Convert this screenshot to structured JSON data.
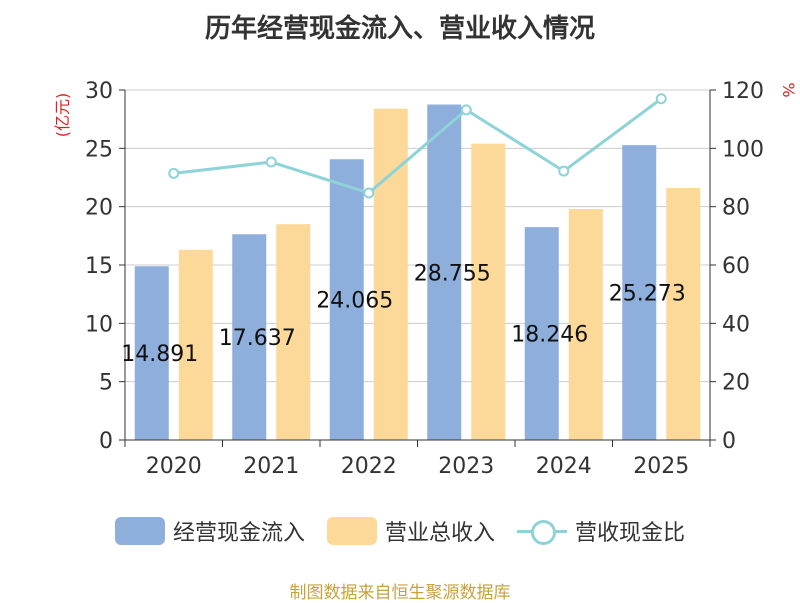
{
  "chart_data": {
    "type": "bar",
    "title": "历年经营现金流入、营业收入情况",
    "categories": [
      "2020",
      "2021",
      "2022",
      "2023",
      "2024",
      "2025"
    ],
    "series": [
      {
        "name": "经营现金流入",
        "type": "bar",
        "axis": "left",
        "color": "#8eaedb",
        "values": [
          14.891,
          17.637,
          24.065,
          28.755,
          18.246,
          25.273
        ],
        "labels": [
          "14.891",
          "17.637",
          "24.065",
          "28.755",
          "18.246",
          "25.273"
        ]
      },
      {
        "name": "营业总收入",
        "type": "bar",
        "axis": "left",
        "color": "#fcd999",
        "values": [
          16.3,
          18.5,
          28.4,
          25.4,
          19.8,
          21.6
        ]
      },
      {
        "name": "营收现金比",
        "type": "line",
        "axis": "right",
        "color": "#8dd3d7",
        "values": [
          91.4,
          95.3,
          84.7,
          113.2,
          92.2,
          117.0
        ]
      }
    ],
    "left_axis": {
      "unit": "(亿元)",
      "ylim": [
        0,
        30
      ],
      "ticks": [
        "0",
        "5",
        "10",
        "15",
        "20",
        "25",
        "30"
      ]
    },
    "right_axis": {
      "unit": "%",
      "ylim": [
        0,
        120
      ],
      "ticks": [
        "0",
        "20",
        "40",
        "60",
        "80",
        "100",
        "120"
      ]
    },
    "grid": true,
    "legend_position": "bottom"
  },
  "legend": {
    "items": [
      "经营现金流入",
      "营业总收入",
      "营收现金比"
    ]
  },
  "footer": {
    "source": "制图数据来自恒生聚源数据库"
  }
}
